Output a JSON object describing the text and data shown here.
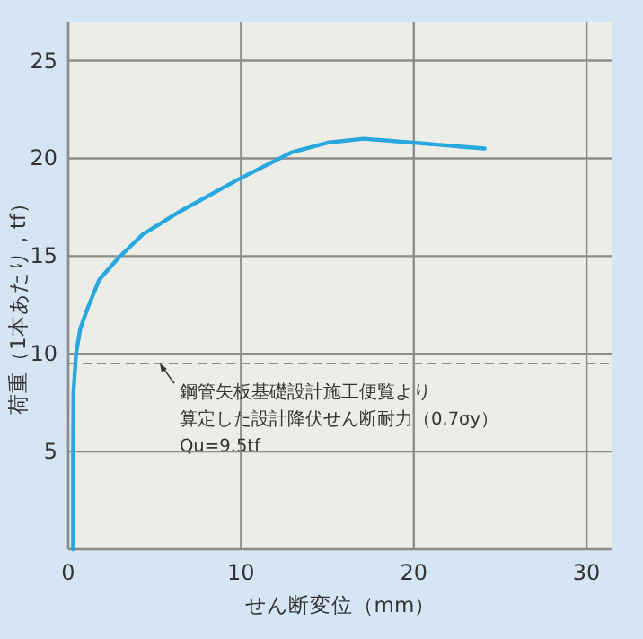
{
  "chart_data": {
    "type": "line",
    "xlabel": "せん断変位（mm）",
    "ylabel": "荷重（1本あたり，tf）",
    "x": [
      0.28,
      0.28,
      0.3,
      0.45,
      0.7,
      1.15,
      1.8,
      2.9,
      4.3,
      6.5,
      9.8,
      12.9,
      15,
      17.1,
      20,
      24.1
    ],
    "series": [
      {
        "color": "#29a8e0",
        "values": [
          0,
          5,
          8,
          10,
          11.3,
          12.4,
          13.8,
          14.9,
          16.1,
          17.3,
          18.9,
          20.3,
          20.8,
          21.0,
          20.8,
          20.5
        ]
      }
    ],
    "xlim": [
      0,
      31.5
    ],
    "ylim": [
      0,
      27
    ],
    "xticks": [
      0,
      10,
      20,
      30
    ],
    "yticks": [
      5,
      10,
      15,
      20,
      25
    ],
    "grid": true,
    "ref_lines": [
      {
        "axis": "y",
        "value": 9.5,
        "color": "#8a8a8a",
        "line_style": "dashed"
      }
    ],
    "annotations": [
      {
        "text": "鋼管矢板基礎設計施工便覧より",
        "x": 5.3,
        "y": 9.5
      },
      "算定した設計降伏せん断耐力（0.7σy）",
      "Qu=9.5tf"
    ]
  }
}
